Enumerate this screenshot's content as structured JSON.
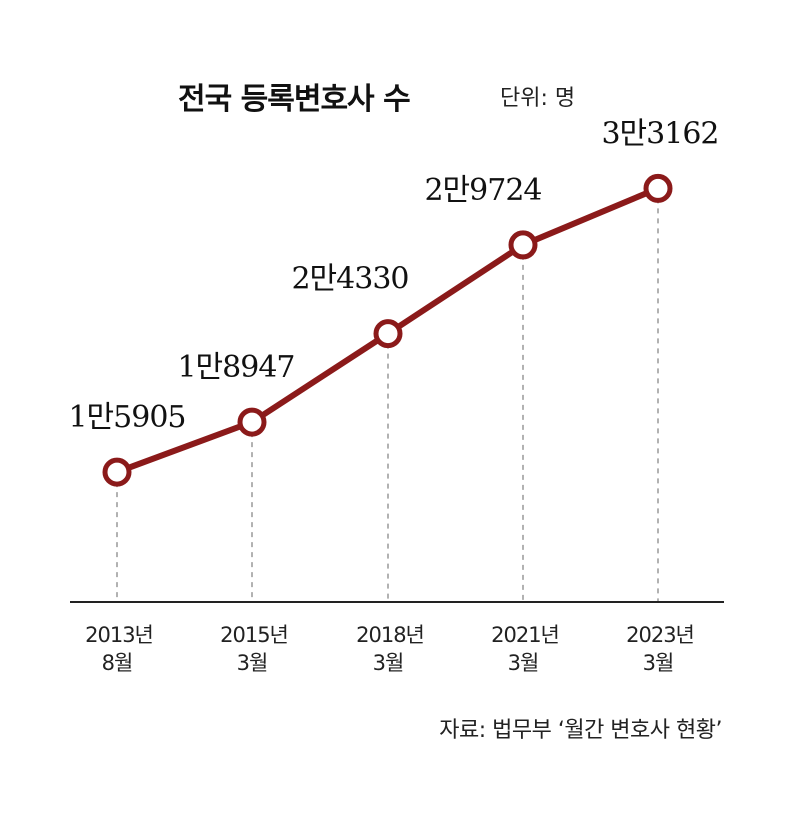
{
  "chart_data": {
    "type": "line",
    "title": "전국 등록변호사 수",
    "unit": "단위: 명",
    "source": "자료: 법무부 ‘월간 변호사 현황’",
    "categories": [
      [
        "2013년",
        "8월"
      ],
      [
        "2015년",
        "3월"
      ],
      [
        "2018년",
        "3월"
      ],
      [
        "2021년",
        "3월"
      ],
      [
        "2023년",
        "3월"
      ]
    ],
    "values": [
      15905,
      18947,
      24330,
      29724,
      33162
    ],
    "value_labels": [
      "1만5905",
      "1만8947",
      "2만4330",
      "2만9724",
      "3만3162"
    ],
    "ylim": [
      8000,
      35500
    ],
    "grid": false,
    "line_color": "#8b1a1a"
  }
}
